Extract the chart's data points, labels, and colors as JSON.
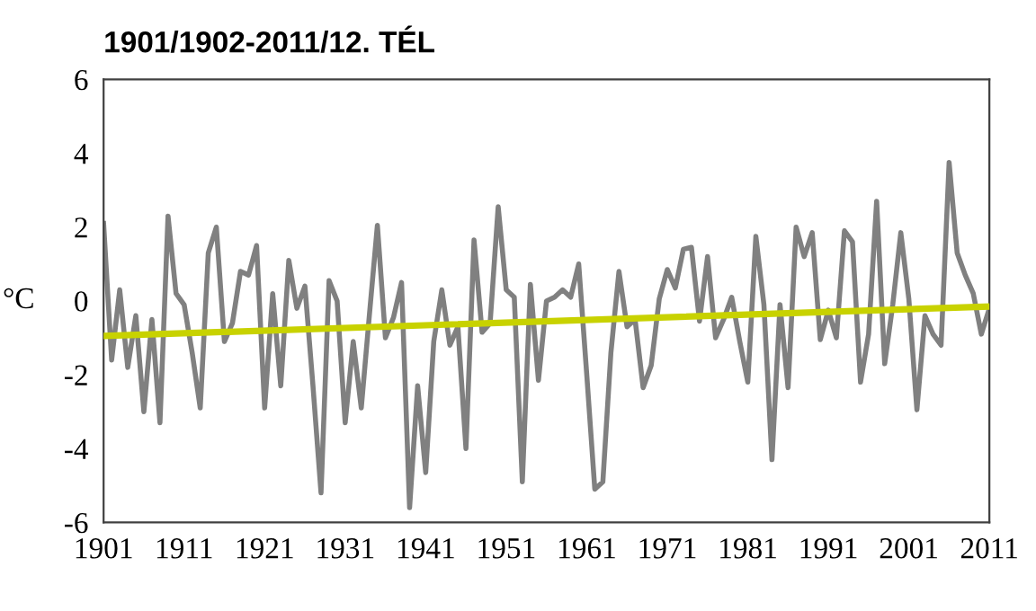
{
  "chart_data": {
    "type": "line",
    "title": "1901/1902-2011/12. TÉL",
    "ylabel": "°C",
    "x": [
      1901,
      1902,
      1903,
      1904,
      1905,
      1906,
      1907,
      1908,
      1909,
      1910,
      1911,
      1912,
      1913,
      1914,
      1915,
      1916,
      1917,
      1918,
      1919,
      1920,
      1921,
      1922,
      1923,
      1924,
      1925,
      1926,
      1927,
      1928,
      1929,
      1930,
      1931,
      1932,
      1933,
      1934,
      1935,
      1936,
      1937,
      1938,
      1939,
      1940,
      1941,
      1942,
      1943,
      1944,
      1945,
      1946,
      1947,
      1948,
      1949,
      1950,
      1951,
      1952,
      1953,
      1954,
      1955,
      1956,
      1957,
      1958,
      1959,
      1960,
      1961,
      1962,
      1963,
      1964,
      1965,
      1966,
      1967,
      1968,
      1969,
      1970,
      1971,
      1972,
      1973,
      1974,
      1975,
      1976,
      1977,
      1978,
      1979,
      1980,
      1981,
      1982,
      1983,
      1984,
      1985,
      1986,
      1987,
      1988,
      1989,
      1990,
      1991,
      1992,
      1993,
      1994,
      1995,
      1996,
      1997,
      1998,
      1999,
      2000,
      2001,
      2002,
      2003,
      2004,
      2005,
      2006,
      2007,
      2008,
      2009,
      2010,
      2011
    ],
    "series": [
      {
        "color": "#808080",
        "values": [
          2.1,
          -1.6,
          0.3,
          -1.8,
          -0.4,
          -3.0,
          -0.5,
          -3.3,
          2.3,
          0.2,
          -0.1,
          -1.4,
          -2.9,
          1.3,
          2.0,
          -1.1,
          -0.6,
          0.8,
          0.7,
          1.5,
          -2.9,
          0.2,
          -2.3,
          1.1,
          -0.2,
          0.4,
          -2.3,
          -5.2,
          0.55,
          0.0,
          -3.3,
          -1.1,
          -2.9,
          -0.4,
          2.05,
          -1.0,
          -0.45,
          0.5,
          -5.6,
          -2.3,
          -4.65,
          -1.1,
          0.3,
          -1.2,
          -0.7,
          -4.0,
          1.65,
          -0.85,
          -0.6,
          2.55,
          0.3,
          0.1,
          -4.9,
          0.45,
          -2.15,
          0.0,
          0.1,
          0.3,
          0.1,
          1.0,
          -2.0,
          -5.1,
          -4.9,
          -1.4,
          0.8,
          -0.7,
          -0.5,
          -2.35,
          -1.75,
          0.05,
          0.85,
          0.35,
          1.4,
          1.45,
          -0.55,
          1.2,
          -1.0,
          -0.5,
          0.1,
          -1.1,
          -2.2,
          1.75,
          -0.1,
          -4.3,
          -0.1,
          -2.35,
          2.0,
          1.2,
          1.85,
          -1.05,
          -0.25,
          -1.0,
          1.9,
          1.6,
          -2.2,
          -0.9,
          2.7,
          -1.7,
          -0.1,
          1.85,
          0.05,
          -2.95,
          -0.4,
          -0.9,
          -1.2,
          3.75,
          1.3,
          0.7,
          0.2,
          -0.9,
          -0.2
        ]
      },
      {
        "type": "line",
        "color": "#c8d200",
        "x": [
          1901,
          2011
        ],
        "values": [
          -0.95,
          -0.15
        ]
      }
    ],
    "xlim": [
      1901,
      2011
    ],
    "xticks": [
      1901,
      1911,
      1921,
      1931,
      1941,
      1951,
      1961,
      1971,
      1981,
      1991,
      2001,
      2011
    ],
    "ylim": [
      -6,
      6
    ],
    "yticks": [
      -6,
      -4,
      -2,
      0,
      2,
      4,
      6
    ],
    "grid": false,
    "legend": false,
    "marker": "none",
    "line_style": "solid"
  }
}
